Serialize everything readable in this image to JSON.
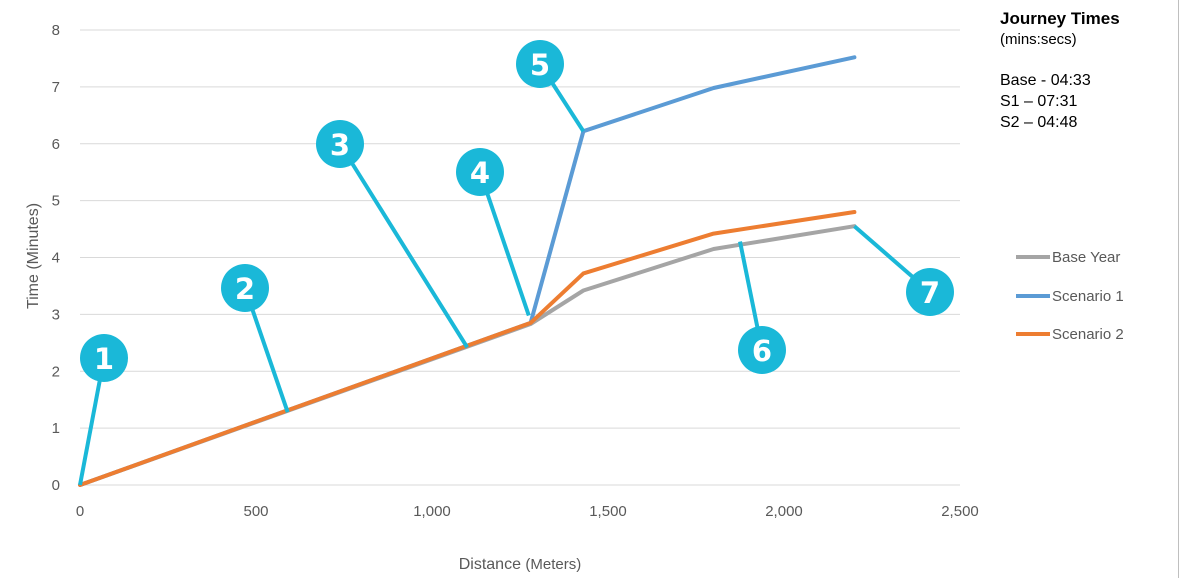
{
  "chart_data": {
    "type": "line",
    "xlabel": "Distance",
    "xlabel_unit": "(Meters)",
    "ylabel": "Time (Minutes)",
    "xlim": [
      0,
      2500
    ],
    "ylim": [
      0,
      8
    ],
    "x_ticks": [
      "0",
      "500",
      "1,000",
      "1,500",
      "2,000",
      "2,500"
    ],
    "y_ticks": [
      "0",
      "1",
      "2",
      "3",
      "4",
      "5",
      "6",
      "7",
      "8"
    ],
    "grid": "horizontal",
    "legend_position": "right",
    "series": [
      {
        "name": "Base Year",
        "color": "#a5a5a5",
        "points": [
          [
            0,
            0
          ],
          [
            1280,
            2.83
          ],
          [
            1430,
            3.42
          ],
          [
            1800,
            4.15
          ],
          [
            2200,
            4.55
          ]
        ]
      },
      {
        "name": "Scenario 1",
        "color": "#5b9bd5",
        "points": [
          [
            0,
            0
          ],
          [
            1280,
            2.85
          ],
          [
            1430,
            6.22
          ],
          [
            1800,
            6.98
          ],
          [
            2200,
            7.52
          ]
        ]
      },
      {
        "name": "Scenario 2",
        "color": "#ed7d31",
        "points": [
          [
            0,
            0
          ],
          [
            1280,
            2.85
          ],
          [
            1430,
            3.72
          ],
          [
            1800,
            4.42
          ],
          [
            2200,
            4.8
          ]
        ]
      }
    ],
    "annotations": [
      {
        "label": "1",
        "target": [
          0,
          0
        ]
      },
      {
        "label": "2",
        "target": [
          590,
          1.28
        ]
      },
      {
        "label": "3",
        "target": [
          1100,
          2.42
        ]
      },
      {
        "label": "4",
        "target": [
          1275,
          2.98
        ]
      },
      {
        "label": "5",
        "target": [
          1430,
          6.22
        ]
      },
      {
        "label": "6",
        "target": [
          1875,
          4.28
        ]
      },
      {
        "label": "7",
        "target": [
          2200,
          4.55
        ]
      }
    ],
    "annotation_color": "#1ab8d8"
  },
  "journey_times": {
    "title": "Journey Times",
    "subtitle": "(mins:secs)",
    "items": [
      "Base - 04:33",
      "S1 – 07:31",
      "S2 – 04:48"
    ]
  }
}
